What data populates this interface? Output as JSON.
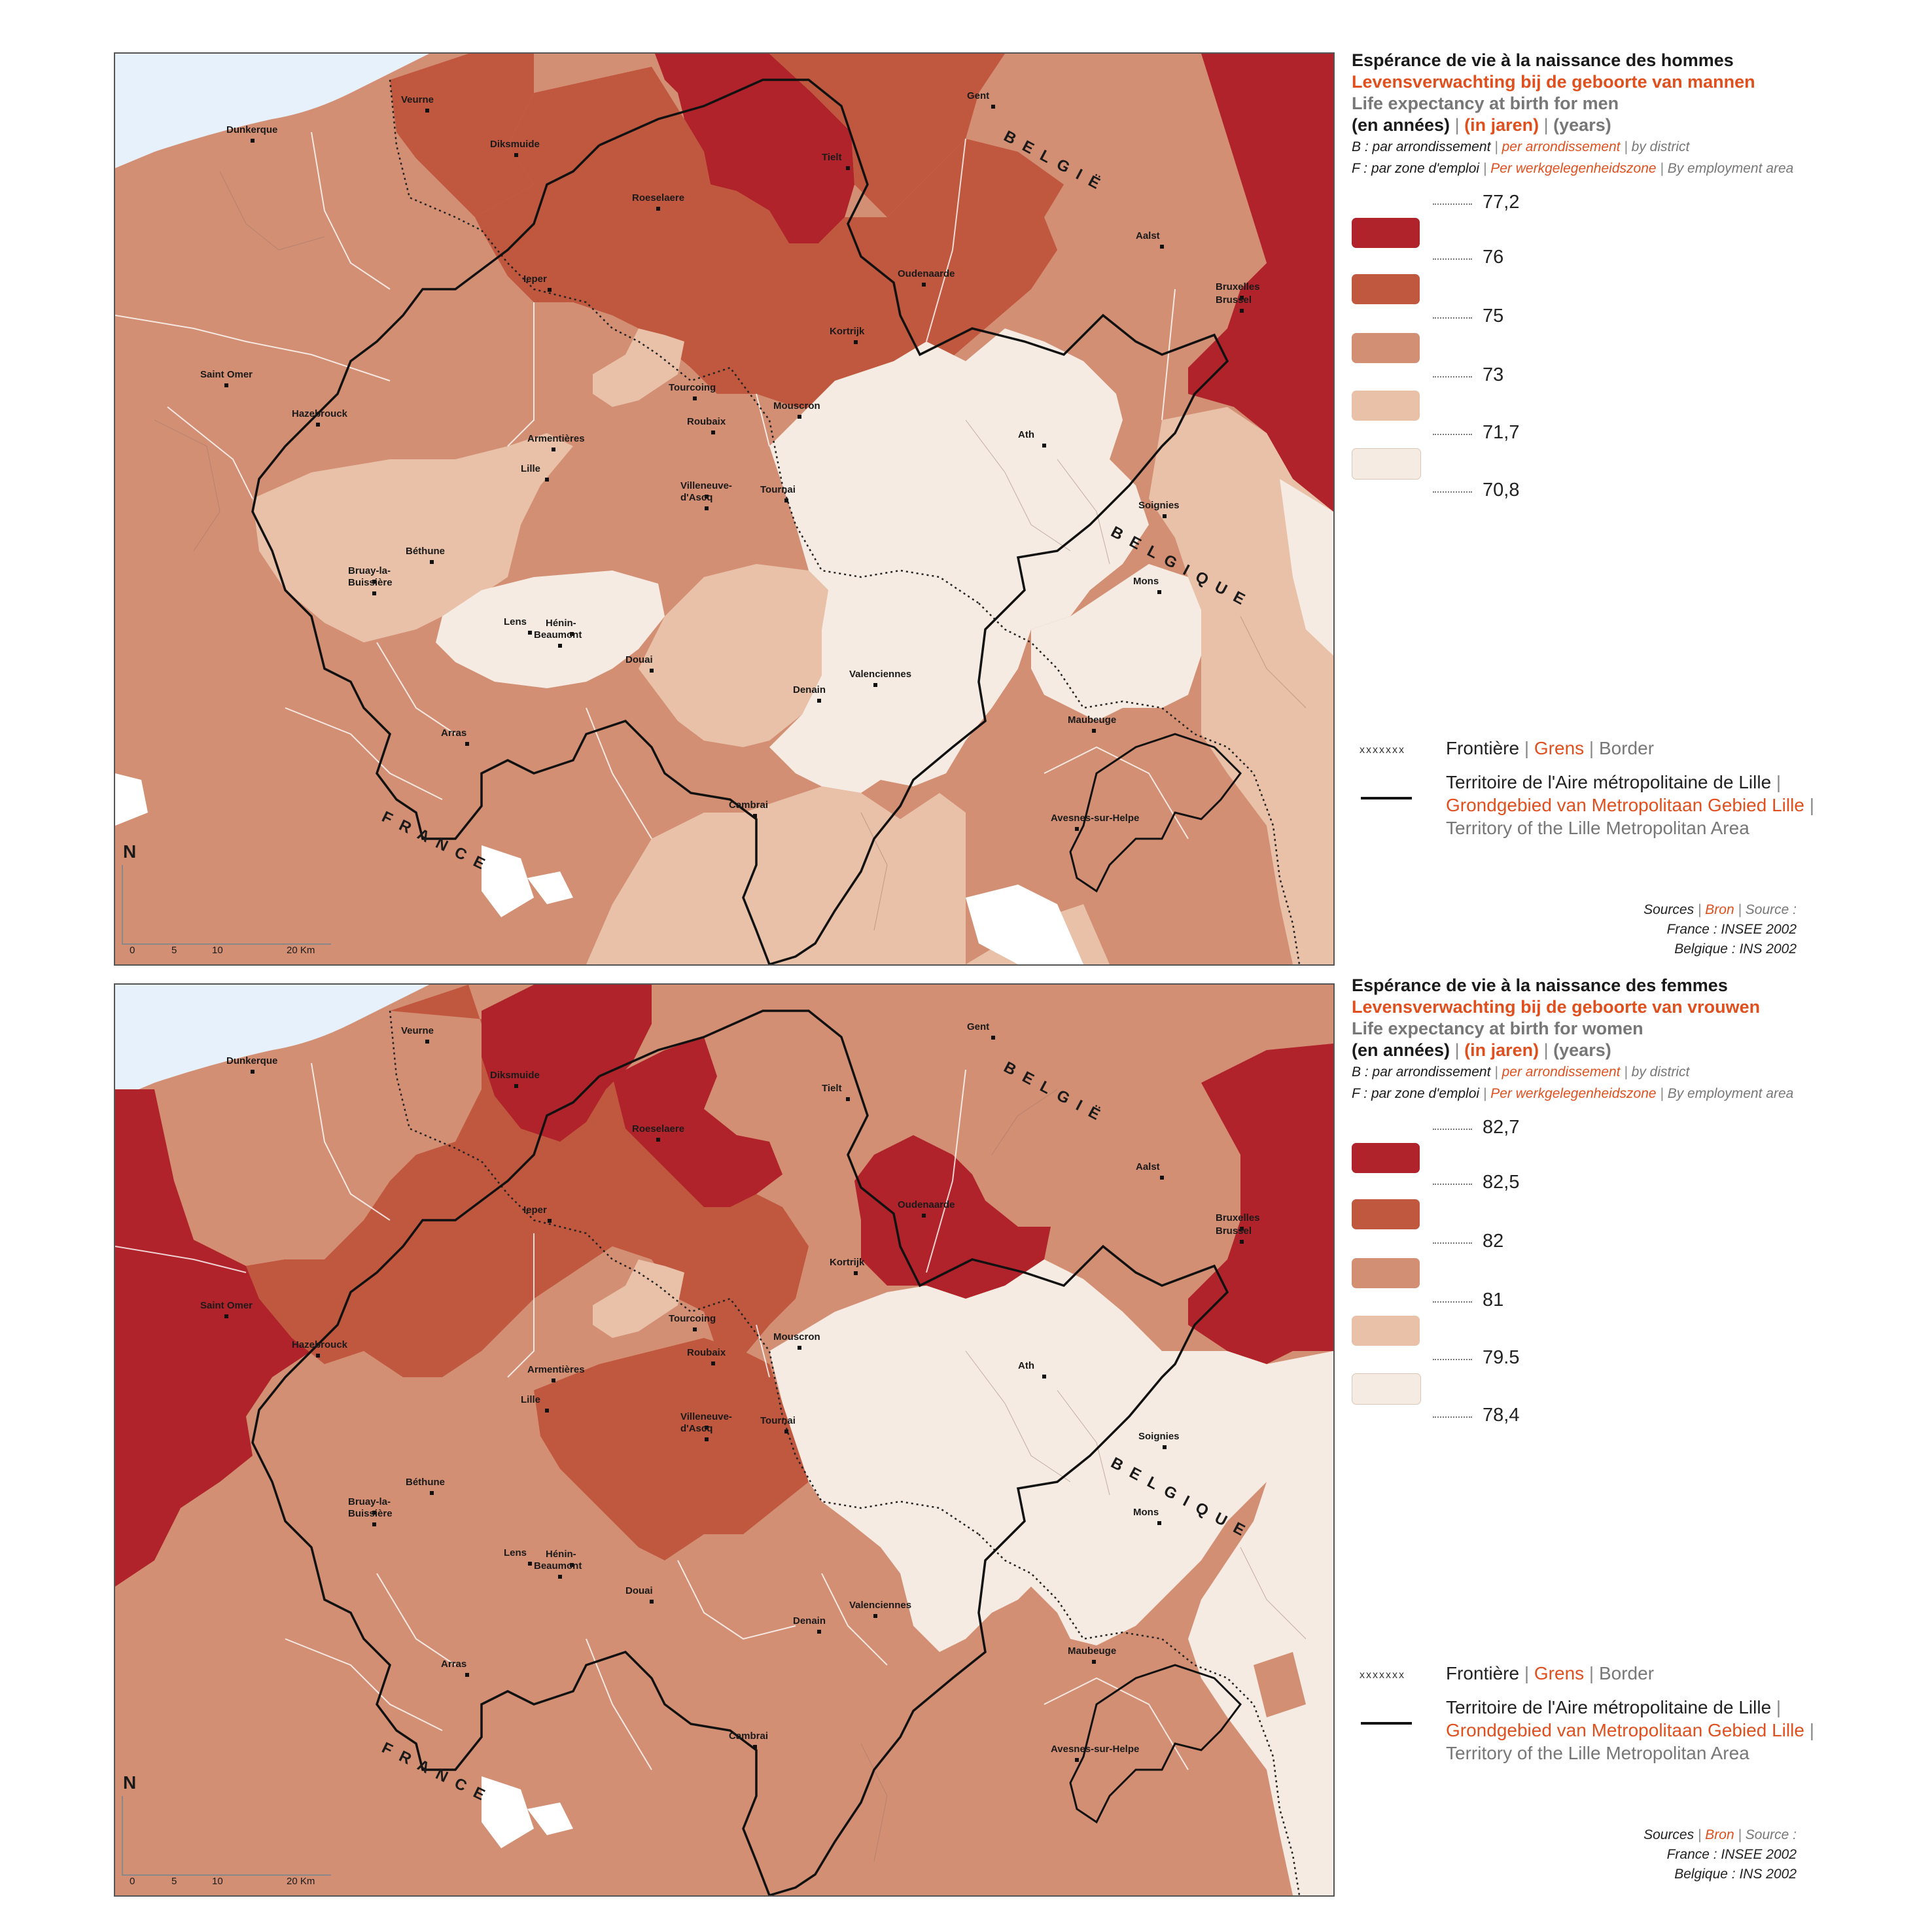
{
  "maps": [
    {
      "id": "men",
      "title_fr": "Espérance de vie à la naissance des hommes",
      "title_nl": "Levensverwachting bij de geboorte van mannen",
      "title_en": "Life expectancy at birth for men",
      "unit_fr": "(en années)",
      "unit_nl": "(in jaren)",
      "unit_en": "(years)",
      "scope_b_fr": "B : par arrondissement",
      "scope_b_nl": "per arrondissement",
      "scope_b_en": "by district",
      "scope_f_fr": "F : par zone d'emploi",
      "scope_f_nl": "Per werkgelegenheidszone",
      "scope_f_en": "By employment area",
      "breaks": [
        "77,2",
        "76",
        "75",
        "73",
        "71,7",
        "70,8"
      ],
      "class_colors": [
        "#b0232a",
        "#c0573f",
        "#d38f74",
        "#e8c1a8",
        "#f5ebe2"
      ]
    },
    {
      "id": "women",
      "title_fr": "Espérance de vie à la naissance des femmes",
      "title_nl": "Levensverwachting bij de geboorte van vrouwen",
      "title_en": "Life expectancy at birth for women",
      "unit_fr": "(en années)",
      "unit_nl": "(in jaren)",
      "unit_en": "(years)",
      "scope_b_fr": "B : par arrondissement",
      "scope_b_nl": "per arrondissement",
      "scope_b_en": "by district",
      "scope_f_fr": "F : par zone d'emploi",
      "scope_f_nl": "Per werkgelegenheidszone",
      "scope_f_en": "By employment area",
      "breaks": [
        "82,7",
        "82,5",
        "82",
        "81",
        "79.5",
        "78,4"
      ],
      "class_colors": [
        "#b0232a",
        "#c0573f",
        "#d38f74",
        "#e8c1a8",
        "#f5ebe2"
      ]
    }
  ],
  "legend_common": {
    "border_fr": "Frontière",
    "border_nl": "Grens",
    "border_en": "Border",
    "area_fr": "Territoire de l'Aire métropolitaine de Lille",
    "area_nl": "Grondgebied van Metropolitaan Gebied Lille",
    "area_en": "Territory of the Lille Metropolitan Area",
    "border_symbol": "xxxxxxx"
  },
  "sources": {
    "label_fr": "Sources",
    "label_nl": "Bron",
    "label_en": "Source :",
    "france": "France : INSEE 2002",
    "belgium": "Belgique : INS 2002"
  },
  "map_labels": {
    "north": "N",
    "scale_ticks": [
      "0",
      "5",
      "10",
      "20 Km"
    ],
    "country_belgie": "B E L G I Ë",
    "country_belgique": "B E L G I Q U E",
    "country_france": "F R A N C E",
    "cities": [
      "Dunkerque",
      "Veurne",
      "Diksmuide",
      "Gent",
      "Tielt",
      "Roeselaere",
      "Aalst",
      "Ieper",
      "Oudenaarde",
      "Bruxelles",
      "Brussel",
      "Kortrijk",
      "Saint Omer",
      "Hazebrouck",
      "Tourcoing",
      "Mouscron",
      "Armentières",
      "Roubaix",
      "Ath",
      "Lille",
      "Villeneuve-",
      "d'Ascq",
      "Tournai",
      "Soignies",
      "Béthune",
      "Bruay-la-",
      "Buissière",
      "Mons",
      "Lens",
      "Hénin-",
      "Beaumont",
      "Douai",
      "Valenciennes",
      "Denain",
      "Arras",
      "Maubeuge",
      "Cambrai",
      "Avesnes-sur-Helpe"
    ]
  },
  "colors": {
    "sea": "#e6f1fb",
    "very_high": "#b0232a",
    "high": "#c0573f",
    "mid": "#d38f74",
    "low": "#e8c1a8",
    "very_low": "#f5ebe2",
    "accent_nl": "#e0501e",
    "accent_en": "#777777"
  }
}
